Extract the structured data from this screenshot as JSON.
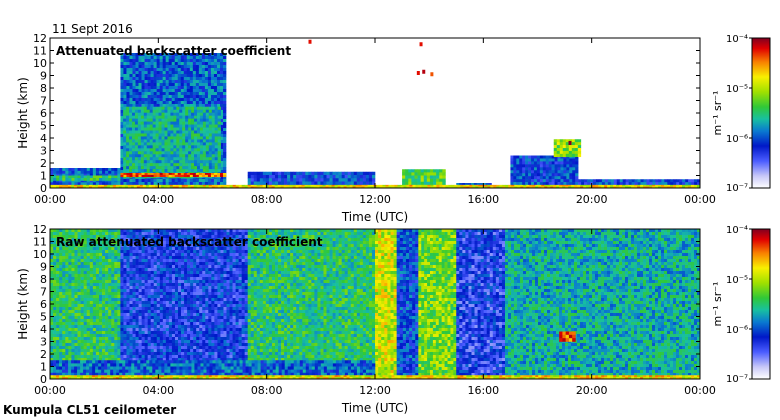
{
  "date": "11 Sept 2016",
  "instrument": "Kumpula CL51 ceilometer",
  "colors": {
    "background": "#ffffff",
    "axis": "#000000",
    "colormap": [
      "#ffffff",
      "#c8c8f8",
      "#4a5cff",
      "#0018c8",
      "#0a7ad0",
      "#18c0a0",
      "#30c838",
      "#a0e000",
      "#f8f000",
      "#f88000",
      "#e00000",
      "#800020"
    ]
  },
  "chart_data": [
    {
      "type": "heatmap",
      "title": "Attenuated backscatter coefficient",
      "xlabel": "Time (UTC)",
      "ylabel": "Height (km)",
      "x_ticks": [
        "00:00",
        "04:00",
        "08:00",
        "12:00",
        "16:00",
        "20:00",
        "00:00"
      ],
      "xlim_hours": [
        0,
        24
      ],
      "y_ticks": [
        0,
        1,
        2,
        3,
        4,
        5,
        6,
        7,
        8,
        9,
        10,
        11,
        12
      ],
      "ylim": [
        0,
        12
      ],
      "colorbar": {
        "label": "m⁻¹ sr⁻¹",
        "min_label": "10⁻⁷",
        "ticks": [
          "10⁻⁴",
          "10⁻⁵",
          "10⁻⁶",
          "10⁻⁷"
        ],
        "scale": "log",
        "range": [
          1e-07,
          0.0001
        ]
      },
      "regions": [
        {
          "t0": 0.0,
          "t1": 2.6,
          "h0": 0.0,
          "h1": 1.6,
          "level": 0.32
        },
        {
          "t0": 0.0,
          "t1": 2.6,
          "h0": 0.6,
          "h1": 1.0,
          "level": 0.5
        },
        {
          "t0": 2.6,
          "t1": 6.5,
          "h0": 0.0,
          "h1": 10.8,
          "level": 0.34
        },
        {
          "t0": 2.7,
          "t1": 6.3,
          "h0": 0.8,
          "h1": 6.5,
          "level": 0.45
        },
        {
          "t0": 2.6,
          "t1": 6.5,
          "h0": 0.9,
          "h1": 1.2,
          "level": 0.85
        },
        {
          "t0": 7.3,
          "t1": 12.0,
          "h0": 0.0,
          "h1": 1.3,
          "level": 0.3
        },
        {
          "t0": 13.0,
          "t1": 14.6,
          "h0": 0.0,
          "h1": 1.5,
          "level": 0.55
        },
        {
          "t0": 15.0,
          "t1": 16.3,
          "h0": 0.0,
          "h1": 0.4,
          "level": 0.3
        },
        {
          "t0": 17.0,
          "t1": 19.5,
          "h0": 0.0,
          "h1": 2.6,
          "level": 0.3
        },
        {
          "t0": 18.6,
          "t1": 19.6,
          "h0": 2.5,
          "h1": 3.9,
          "level": 0.62
        },
        {
          "t0": 19.5,
          "t1": 24.0,
          "h0": 0.0,
          "h1": 0.7,
          "level": 0.3
        },
        {
          "t0": 0.0,
          "t1": 24.0,
          "h0": 0.0,
          "h1": 0.25,
          "level": 0.72
        }
      ],
      "point_echoes": [
        {
          "t": 9.6,
          "h": 11.7,
          "level": 0.9
        },
        {
          "t": 13.7,
          "h": 11.5,
          "level": 0.9
        },
        {
          "t": 13.6,
          "h": 9.2,
          "level": 0.9
        },
        {
          "t": 13.8,
          "h": 9.3,
          "level": 0.95
        },
        {
          "t": 14.1,
          "h": 9.1,
          "level": 0.85
        },
        {
          "t": 19.2,
          "h": 3.6,
          "level": 1.0
        }
      ]
    },
    {
      "type": "heatmap",
      "title": "Raw attenuated backscatter coefficient",
      "xlabel": "Time (UTC)",
      "ylabel": "Height (km)",
      "x_ticks": [
        "00:00",
        "04:00",
        "08:00",
        "12:00",
        "16:00",
        "20:00",
        "00:00"
      ],
      "xlim_hours": [
        0,
        24
      ],
      "y_ticks": [
        0,
        1,
        2,
        3,
        4,
        5,
        6,
        7,
        8,
        9,
        10,
        11,
        12
      ],
      "ylim": [
        0,
        12
      ],
      "colorbar": {
        "label": "m⁻¹ sr⁻¹",
        "min_label": "10⁻⁷",
        "ticks": [
          "10⁻⁴",
          "10⁻⁵",
          "10⁻⁶",
          "10⁻⁷"
        ],
        "scale": "log",
        "range": [
          1e-07,
          0.0001
        ]
      },
      "regions": [
        {
          "t0": 0.0,
          "t1": 2.6,
          "h0": 0.0,
          "h1": 12.0,
          "level": 0.5
        },
        {
          "t0": 2.6,
          "t1": 7.3,
          "h0": 0.0,
          "h1": 12.0,
          "level": 0.26
        },
        {
          "t0": 7.3,
          "t1": 12.0,
          "h0": 0.0,
          "h1": 12.0,
          "level": 0.5
        },
        {
          "t0": 12.0,
          "t1": 12.8,
          "h0": 0.0,
          "h1": 12.0,
          "level": 0.68
        },
        {
          "t0": 12.8,
          "t1": 13.6,
          "h0": 0.0,
          "h1": 12.0,
          "level": 0.3
        },
        {
          "t0": 13.6,
          "t1": 15.0,
          "h0": 0.0,
          "h1": 12.0,
          "level": 0.6
        },
        {
          "t0": 15.0,
          "t1": 16.8,
          "h0": 0.0,
          "h1": 12.0,
          "level": 0.24
        },
        {
          "t0": 16.8,
          "t1": 24.0,
          "h0": 0.0,
          "h1": 12.0,
          "level": 0.44
        },
        {
          "t0": 0.0,
          "t1": 12.0,
          "h0": 0.0,
          "h1": 1.5,
          "level": 0.34
        },
        {
          "t0": 0.0,
          "t1": 24.0,
          "h0": 0.0,
          "h1": 0.3,
          "level": 0.72
        },
        {
          "t0": 18.8,
          "t1": 19.4,
          "h0": 3.0,
          "h1": 3.8,
          "level": 0.85
        }
      ],
      "point_echoes": []
    }
  ]
}
